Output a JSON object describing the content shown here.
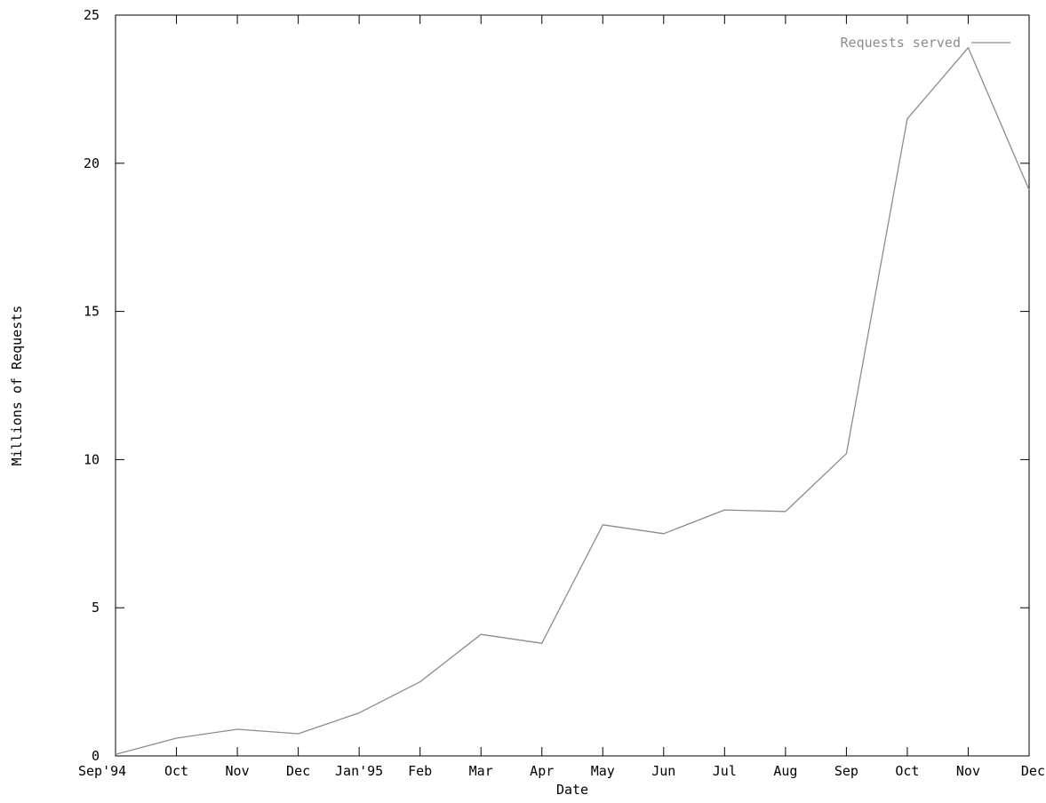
{
  "chart_data": {
    "type": "line",
    "title": "",
    "xlabel": "Date",
    "ylabel": "Millions of Requests",
    "categories": [
      "Sep'94",
      "Oct",
      "Nov",
      "Dec",
      "Jan'95",
      "Feb",
      "Mar",
      "Apr",
      "May",
      "Jun",
      "Jul",
      "Aug",
      "Sep",
      "Oct",
      "Nov",
      "Dec"
    ],
    "series": [
      {
        "name": "Requests served",
        "values": [
          0.05,
          0.6,
          0.9,
          0.75,
          1.45,
          2.5,
          4.1,
          3.8,
          7.8,
          7.5,
          8.3,
          8.25,
          10.2,
          21.5,
          23.9,
          19.1
        ],
        "color": "#8c8c8c"
      }
    ],
    "ylim": [
      0,
      25
    ],
    "yticks": [
      "0",
      "5",
      "10",
      "15",
      "20",
      "25"
    ],
    "legend_position": "top-right",
    "grid": false
  }
}
